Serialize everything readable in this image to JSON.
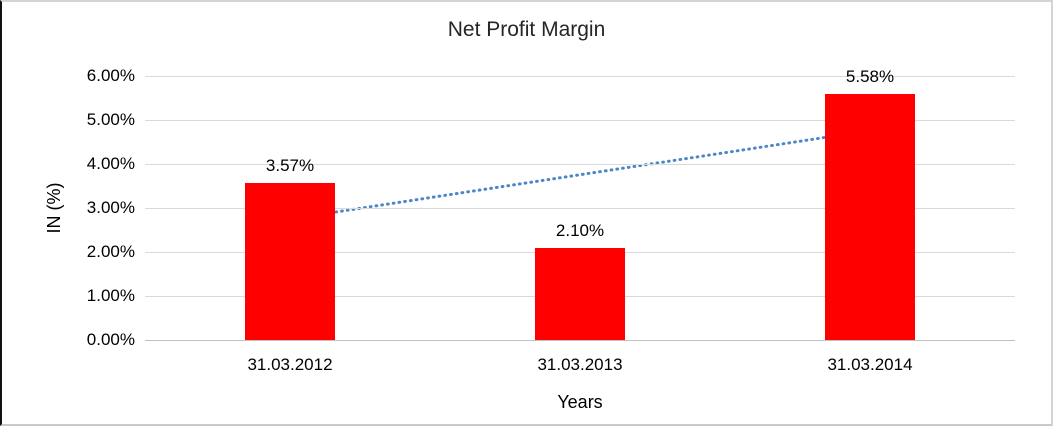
{
  "chart_data": {
    "type": "bar",
    "title": "Net Profit Margin",
    "categories": [
      "31.03.2012",
      "31.03.2013",
      "31.03.2014"
    ],
    "values": [
      3.57,
      2.1,
      5.58
    ],
    "data_labels": [
      "3.57%",
      "2.10%",
      "5.58%"
    ],
    "xlabel": "Years",
    "ylabel": "IN (%)",
    "ylim": [
      0,
      6
    ],
    "ytick_step": 1,
    "ytick_labels": [
      "0.00%",
      "1.00%",
      "2.00%",
      "3.00%",
      "4.00%",
      "5.00%",
      "6.00%"
    ],
    "grid": true,
    "legend": "none",
    "bar_color": "#FF0000",
    "gridline_color": "#D9D9D9",
    "axisline_color": "#BFBFBF",
    "trendline": {
      "type": "linear",
      "style": "dotted",
      "color": "#4A86C8",
      "start_value": 2.75,
      "end_value": 4.76
    }
  }
}
